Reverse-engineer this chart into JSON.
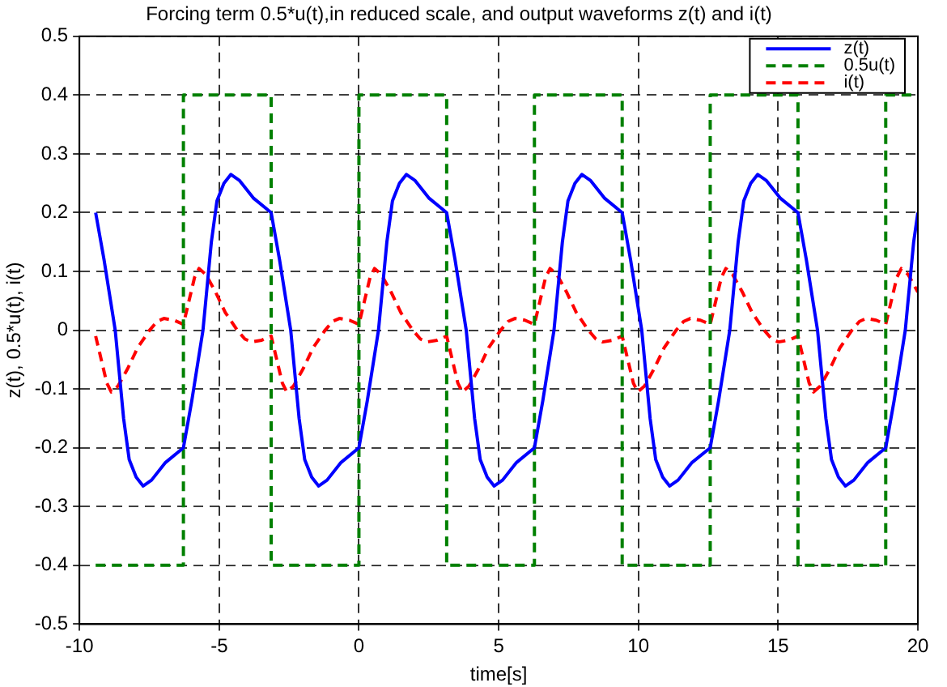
{
  "chart_data": {
    "type": "line",
    "title": "Forcing term 0.5*u(t),in reduced scale, and output waveforms z(t) and i(t)",
    "xlabel": "time[s]",
    "ylabel": "z(t), 0.5*u(t), i(t)",
    "xlim": [
      -10,
      20
    ],
    "xticks": [
      -10,
      -5,
      0,
      5,
      10,
      15,
      20
    ],
    "ylim": [
      -0.5,
      0.5
    ],
    "yticks": [
      -0.5,
      -0.4,
      -0.3,
      -0.2,
      -0.1,
      0,
      0.1,
      0.2,
      0.3,
      0.4,
      0.5
    ],
    "grid": true,
    "legend": "top right",
    "marker": "none",
    "series": [
      {
        "name": "z(t)",
        "color": "#0000ff",
        "line_style": "solid",
        "x": [
          -9.42,
          -9.12,
          -8.72,
          -8.42,
          -8.22,
          -7.97,
          -7.72,
          -7.42,
          -6.92,
          -6.28,
          -5.98,
          -5.58,
          -5.28,
          -5.08,
          -4.83,
          -4.58,
          -4.28,
          -3.78,
          -3.14,
          -2.84,
          -2.44,
          -2.14,
          -1.94,
          -1.69,
          -1.44,
          -1.14,
          -0.64,
          0,
          0.3,
          0.7,
          1.0,
          1.2,
          1.45,
          1.7,
          2.0,
          2.5,
          3.14,
          3.44,
          3.84,
          4.14,
          4.34,
          4.59,
          4.84,
          5.14,
          5.64,
          6.28,
          6.58,
          6.98,
          7.28,
          7.48,
          7.73,
          7.98,
          8.28,
          8.78,
          9.42,
          9.72,
          10.12,
          10.42,
          10.62,
          10.87,
          11.12,
          11.42,
          11.92,
          12.57,
          12.87,
          13.27,
          13.57,
          13.77,
          14.02,
          14.27,
          14.57,
          15.07,
          15.71,
          16.01,
          16.41,
          16.71,
          16.91,
          17.16,
          17.41,
          17.71,
          18.21,
          18.85,
          19.15,
          19.55,
          19.85,
          20
        ],
        "values": [
          0.2,
          0.12,
          0,
          -0.15,
          -0.22,
          -0.25,
          -0.265,
          -0.255,
          -0.225,
          -0.2,
          -0.12,
          0,
          0.15,
          0.22,
          0.25,
          0.265,
          0.255,
          0.225,
          0.2,
          0.12,
          0,
          -0.15,
          -0.22,
          -0.25,
          -0.265,
          -0.255,
          -0.225,
          -0.2,
          -0.12,
          0,
          0.15,
          0.22,
          0.25,
          0.265,
          0.255,
          0.225,
          0.2,
          0.12,
          0,
          -0.15,
          -0.22,
          -0.25,
          -0.265,
          -0.255,
          -0.225,
          -0.2,
          -0.12,
          0,
          0.15,
          0.22,
          0.25,
          0.265,
          0.255,
          0.225,
          0.2,
          0.12,
          0,
          -0.15,
          -0.22,
          -0.25,
          -0.265,
          -0.255,
          -0.225,
          -0.2,
          -0.12,
          0,
          0.15,
          0.22,
          0.25,
          0.265,
          0.255,
          0.225,
          0.2,
          0.12,
          0,
          -0.15,
          -0.22,
          -0.25,
          -0.265,
          -0.255,
          -0.225,
          -0.2,
          -0.12,
          0,
          0.15,
          0.2
        ]
      },
      {
        "name": "0.5u(t)",
        "type": "step",
        "color": "#008000",
        "line_style": "dashed",
        "x": [
          -9.42,
          -6.28,
          -3.14,
          0,
          3.14,
          6.28,
          9.42,
          12.57,
          15.71,
          18.85,
          20
        ],
        "values": [
          -0.4,
          0.4,
          -0.4,
          0.4,
          -0.4,
          0.4,
          -0.4,
          0.4,
          -0.4,
          0.4,
          0.4
        ]
      },
      {
        "name": "i(t)",
        "color": "#ff0000",
        "line_style": "dashed",
        "x": [
          -9.42,
          -9.22,
          -9.02,
          -8.86,
          -8.62,
          -8.27,
          -7.92,
          -7.49,
          -7.22,
          -6.98,
          -6.62,
          -6.28,
          -6.08,
          -5.88,
          -5.72,
          -5.48,
          -5.13,
          -4.78,
          -4.35,
          -4.08,
          -3.84,
          -3.48,
          -3.14,
          -2.94,
          -2.74,
          -2.58,
          -2.34,
          -1.99,
          -1.64,
          -1.21,
          -0.94,
          -0.7,
          -0.34,
          0,
          0.2,
          0.4,
          0.56,
          0.8,
          1.15,
          1.5,
          1.93,
          2.2,
          2.44,
          2.8,
          3.14,
          3.34,
          3.54,
          3.7,
          3.94,
          4.29,
          4.64,
          5.07,
          5.34,
          5.58,
          5.94,
          6.28,
          6.48,
          6.68,
          6.84,
          7.08,
          7.43,
          7.78,
          8.21,
          8.48,
          8.72,
          9.08,
          9.42,
          9.62,
          9.82,
          9.98,
          10.22,
          10.57,
          10.92,
          11.35,
          11.62,
          11.86,
          12.22,
          12.57,
          12.77,
          12.97,
          13.13,
          13.37,
          13.72,
          14.07,
          14.5,
          14.77,
          15.01,
          15.37,
          15.71,
          15.91,
          16.11,
          16.27,
          16.51,
          16.86,
          17.21,
          17.64,
          17.91,
          18.15,
          18.51,
          18.85,
          19.05,
          19.25,
          19.41,
          19.65,
          20
        ],
        "values": [
          -0.01,
          -0.05,
          -0.09,
          -0.105,
          -0.095,
          -0.065,
          -0.03,
          0,
          0.015,
          0.02,
          0.017,
          0.01,
          0.05,
          0.09,
          0.105,
          0.095,
          0.065,
          0.03,
          0,
          -0.015,
          -0.02,
          -0.017,
          -0.01,
          -0.05,
          -0.09,
          -0.105,
          -0.095,
          -0.065,
          -0.03,
          0,
          0.015,
          0.02,
          0.017,
          0.01,
          0.05,
          0.09,
          0.105,
          0.095,
          0.065,
          0.03,
          0,
          -0.015,
          -0.02,
          -0.017,
          -0.01,
          -0.05,
          -0.09,
          -0.105,
          -0.095,
          -0.065,
          -0.03,
          0,
          0.015,
          0.02,
          0.017,
          0.01,
          0.05,
          0.09,
          0.105,
          0.095,
          0.065,
          0.03,
          0,
          -0.015,
          -0.02,
          -0.017,
          -0.01,
          -0.05,
          -0.09,
          -0.105,
          -0.095,
          -0.065,
          -0.03,
          0,
          0.015,
          0.02,
          0.017,
          0.01,
          0.05,
          0.09,
          0.105,
          0.095,
          0.065,
          0.03,
          0,
          -0.015,
          -0.02,
          -0.017,
          -0.01,
          -0.05,
          -0.09,
          -0.105,
          -0.095,
          -0.065,
          -0.03,
          0,
          0.015,
          0.02,
          0.017,
          0.01,
          0.05,
          0.09,
          0.105,
          0.095,
          0.065
        ]
      }
    ]
  }
}
